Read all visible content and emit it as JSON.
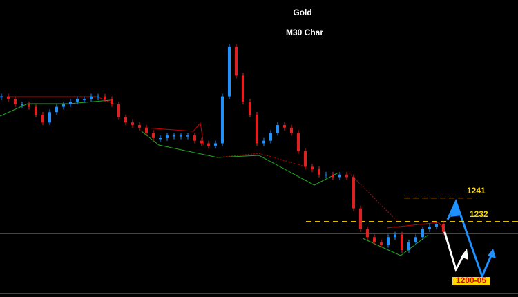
{
  "chart_data": {
    "type": "candle-steps",
    "title": "Gold",
    "subtitle": "M30 Char",
    "values": [
      1280,
      1279,
      1277,
      1277,
      1276,
      1273,
      1270,
      1274,
      1276,
      1277,
      1278,
      1279,
      1279,
      1280,
      1280,
      1279,
      1277,
      1272,
      1270,
      1269,
      1268,
      1266,
      1264,
      1264,
      1265,
      1265,
      1265,
      1265,
      1263,
      1262,
      1261,
      1262,
      1280,
      1299,
      1288,
      1278,
      1273,
      1262,
      1263,
      1266,
      1269,
      1268,
      1266,
      1259,
      1253,
      1252,
      1250,
      1250,
      1249,
      1250,
      1249,
      1237,
      1229,
      1226,
      1224,
      1223,
      1226,
      1227,
      1221,
      1224,
      1226,
      1229,
      1230,
      1231,
      1228
    ],
    "up_color": "#1e90ff",
    "down_color": "#e02020",
    "ylim": [
      1203,
      1317
    ],
    "levels": [
      1241,
      1232
    ],
    "level_color": "#ffd700",
    "target": "1200-05"
  }
}
